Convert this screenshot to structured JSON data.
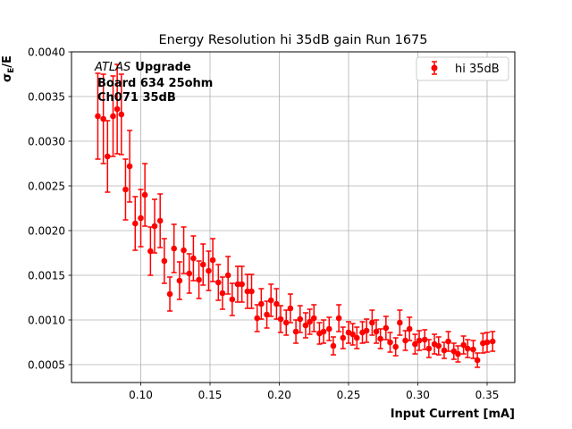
{
  "chart_data": {
    "type": "scatter",
    "title": "Energy Resolution hi 35dB gain Run 1675",
    "xlabel": "Input Current [mA]",
    "ylabel_main": "σ",
    "ylabel_sub": "E",
    "ylabel_tail": "/E",
    "xlim": [
      0.05,
      0.37
    ],
    "ylim": [
      0.0003,
      0.004
    ],
    "xticks": [
      0.1,
      0.15,
      0.2,
      0.25,
      0.3,
      0.35
    ],
    "xtick_labels": [
      "0.10",
      "0.15",
      "0.20",
      "0.25",
      "0.30",
      "0.35"
    ],
    "yticks": [
      0.0005,
      0.001,
      0.0015,
      0.002,
      0.0025,
      0.003,
      0.0035,
      0.004
    ],
    "ytick_labels": [
      "0.0005",
      "0.0010",
      "0.0015",
      "0.0020",
      "0.0025",
      "0.0030",
      "0.0035",
      "0.0040"
    ],
    "grid": true,
    "legend_position": "top-right",
    "annotation": {
      "atlas": "ATLAS",
      "upgrade": "Upgrade",
      "line2": "Board 634 25ohm",
      "line3": "Ch071 35dB"
    },
    "series": [
      {
        "name": "hi 35dB",
        "color": "#ff0000",
        "x": [
          0.069,
          0.073,
          0.076,
          0.08,
          0.083,
          0.086,
          0.089,
          0.092,
          0.096,
          0.1,
          0.103,
          0.107,
          0.11,
          0.114,
          0.117,
          0.121,
          0.124,
          0.128,
          0.131,
          0.135,
          0.138,
          0.142,
          0.145,
          0.149,
          0.152,
          0.156,
          0.159,
          0.163,
          0.166,
          0.17,
          0.173,
          0.177,
          0.18,
          0.184,
          0.187,
          0.191,
          0.194,
          0.198,
          0.201,
          0.205,
          0.208,
          0.212,
          0.215,
          0.219,
          0.222,
          0.225,
          0.229,
          0.232,
          0.236,
          0.239,
          0.243,
          0.246,
          0.25,
          0.253,
          0.256,
          0.26,
          0.263,
          0.267,
          0.27,
          0.273,
          0.277,
          0.28,
          0.284,
          0.287,
          0.291,
          0.294,
          0.298,
          0.301,
          0.305,
          0.308,
          0.312,
          0.315,
          0.319,
          0.322,
          0.326,
          0.329,
          0.333,
          0.336,
          0.34,
          0.343,
          0.347,
          0.35,
          0.354
        ],
        "y": [
          0.00328,
          0.00325,
          0.00283,
          0.00328,
          0.00336,
          0.0033,
          0.00246,
          0.00272,
          0.00208,
          0.00214,
          0.0024,
          0.00177,
          0.00205,
          0.00211,
          0.00166,
          0.00129,
          0.0018,
          0.00144,
          0.00178,
          0.00152,
          0.00169,
          0.00145,
          0.00162,
          0.00155,
          0.00167,
          0.00142,
          0.0013,
          0.0015,
          0.00123,
          0.0014,
          0.0014,
          0.00132,
          0.00132,
          0.00102,
          0.00118,
          0.00106,
          0.00122,
          0.00118,
          0.00101,
          0.00097,
          0.00113,
          0.00087,
          0.00101,
          0.00094,
          0.00098,
          0.00102,
          0.00085,
          0.00087,
          0.0009,
          0.00071,
          0.00102,
          0.0008,
          0.00086,
          0.00084,
          0.0008,
          0.00086,
          0.00088,
          0.00097,
          0.00087,
          0.00079,
          0.00091,
          0.00075,
          0.0007,
          0.00097,
          0.00077,
          0.0009,
          0.00073,
          0.00077,
          0.00078,
          0.00068,
          0.00073,
          0.00071,
          0.00066,
          0.00076,
          0.00065,
          0.00062,
          0.00072,
          0.00068,
          0.00067,
          0.00055,
          0.00074,
          0.00075,
          0.00076
        ],
        "yerr": [
          0.00048,
          0.0005,
          0.0004,
          0.00045,
          0.0005,
          0.00045,
          0.00034,
          0.0004,
          0.0003,
          0.00032,
          0.00035,
          0.00027,
          0.0003,
          0.0003,
          0.00025,
          0.00019,
          0.00027,
          0.00021,
          0.00026,
          0.00022,
          0.00025,
          0.00021,
          0.00023,
          0.00022,
          0.00024,
          0.0002,
          0.00018,
          0.00021,
          0.00018,
          0.0002,
          0.0002,
          0.00019,
          0.00019,
          0.00015,
          0.00017,
          0.00015,
          0.00018,
          0.00017,
          0.00015,
          0.00014,
          0.00016,
          0.00013,
          0.00015,
          0.00014,
          0.00014,
          0.00015,
          0.00012,
          0.00013,
          0.00013,
          0.0001,
          0.00015,
          0.00012,
          0.00012,
          0.00012,
          0.00012,
          0.00012,
          0.00013,
          0.00014,
          0.00013,
          0.00011,
          0.00013,
          0.00011,
          0.0001,
          0.00014,
          0.00011,
          0.00013,
          0.00011,
          0.00011,
          0.00011,
          0.0001,
          0.00011,
          0.0001,
          9e-05,
          0.00011,
          9e-05,
          9e-05,
          0.0001,
          0.0001,
          0.0001,
          8e-05,
          0.00011,
          0.00011,
          0.00011
        ]
      }
    ]
  }
}
